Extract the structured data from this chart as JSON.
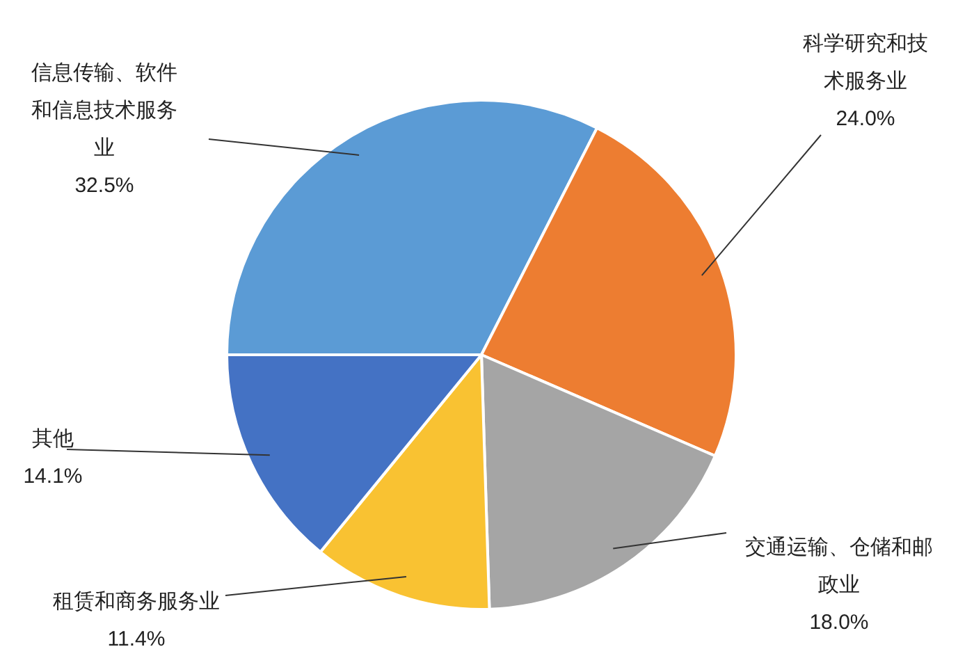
{
  "chart_data": {
    "type": "pie",
    "categories": [
      "信息传输、软件和信息技术服务业",
      "科学研究和技术服务业",
      "交通运输、仓储和邮政业",
      "租赁和商务服务业",
      "其他"
    ],
    "values": [
      32.5,
      24.0,
      18.0,
      11.4,
      14.1
    ],
    "colors": [
      "#5b9bd5",
      "#ed7d31",
      "#a5a5a5",
      "#f9c232",
      "#4472c4"
    ],
    "value_labels": [
      "32.5%",
      "24.0%",
      "18.0%",
      "11.4%",
      "14.1%"
    ]
  }
}
